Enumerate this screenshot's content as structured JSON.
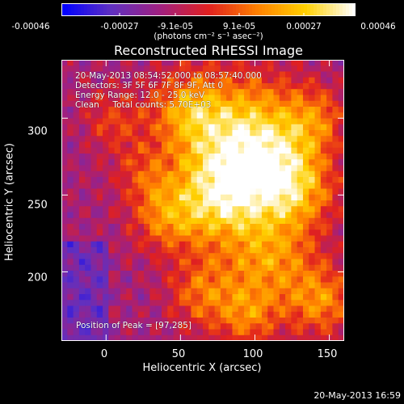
{
  "colorbar": {
    "ticks": [
      "-0.00046",
      "-0.00027",
      "-9.1e-05",
      "9.1e-05",
      "0.00027",
      "0.00046"
    ],
    "units": "(photons cm⁻² s⁻¹ asec⁻²)",
    "colormap": [
      "#0000ff",
      "#6030c0",
      "#a02080",
      "#e02020",
      "#ff8000",
      "#ffd000",
      "#ffffff"
    ]
  },
  "chart_data": {
    "type": "heatmap",
    "title": "Reconstructed RHESSI Image",
    "xlabel": "Heliocentric X (arcsec)",
    "ylabel": "Heliocentric Y (arcsec)",
    "xlim": [
      -30,
      160
    ],
    "ylim": [
      155,
      338
    ],
    "x_ticks": [
      0,
      50,
      100,
      150
    ],
    "y_ticks": [
      200,
      250,
      300
    ],
    "peak": [
      97,
      285
    ],
    "color_range": [
      -0.00046,
      0.00046
    ]
  },
  "annotations": {
    "time_range": "20-May-2013 08:54:52.000 to 08:57:40.000",
    "detectors": "Detectors: 3F 5F 6F 7F 8F 9F, Att 0",
    "energy": "Energy Range: 12.0 - 25.0 keV",
    "method": "Clean     Total counts: 5.70E+03",
    "peak_label": "Position of Peak = [97,285]"
  },
  "footer": {
    "timestamp": "20-May-2013 16:59"
  }
}
